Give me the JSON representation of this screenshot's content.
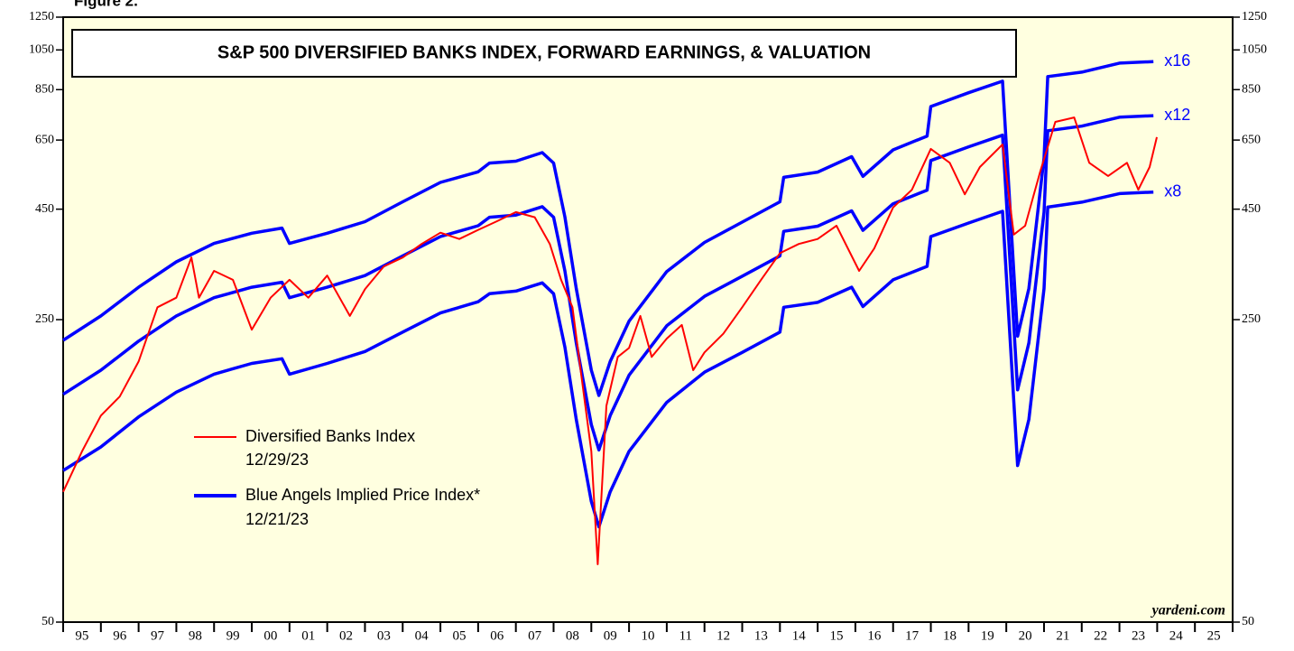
{
  "chart_data": {
    "type": "line",
    "figure_label": "Figure 2.",
    "title": "S&P 500 DIVERSIFIED BANKS INDEX, FORWARD EARNINGS, & VALUATION",
    "source": "yardeni.com",
    "yscale": "log",
    "ylim": [
      50,
      1250
    ],
    "yticks": [
      50,
      250,
      450,
      650,
      850,
      1050,
      1250
    ],
    "xlim": [
      1995,
      2026
    ],
    "xticks": [
      1995,
      1996,
      1997,
      1998,
      1999,
      2000,
      2001,
      2002,
      2003,
      2004,
      2005,
      2006,
      2007,
      2008,
      2009,
      2010,
      2011,
      2012,
      2013,
      2014,
      2015,
      2016,
      2017,
      2018,
      2019,
      2020,
      2021,
      2022,
      2023,
      2024,
      2025,
      2026
    ],
    "xtick_labels": [
      {
        "value": 1995.5,
        "label": "95"
      },
      {
        "value": 1996.5,
        "label": "96"
      },
      {
        "value": 1997.5,
        "label": "97"
      },
      {
        "value": 1998.5,
        "label": "98"
      },
      {
        "value": 1999.5,
        "label": "99"
      },
      {
        "value": 2000.5,
        "label": "00"
      },
      {
        "value": 2001.5,
        "label": "01"
      },
      {
        "value": 2002.5,
        "label": "02"
      },
      {
        "value": 2003.5,
        "label": "03"
      },
      {
        "value": 2004.5,
        "label": "04"
      },
      {
        "value": 2005.5,
        "label": "05"
      },
      {
        "value": 2006.5,
        "label": "06"
      },
      {
        "value": 2007.5,
        "label": "07"
      },
      {
        "value": 2008.5,
        "label": "08"
      },
      {
        "value": 2009.5,
        "label": "09"
      },
      {
        "value": 2010.5,
        "label": "10"
      },
      {
        "value": 2011.5,
        "label": "11"
      },
      {
        "value": 2012.5,
        "label": "12"
      },
      {
        "value": 2013.5,
        "label": "13"
      },
      {
        "value": 2014.5,
        "label": "14"
      },
      {
        "value": 2015.5,
        "label": "15"
      },
      {
        "value": 2016.5,
        "label": "16"
      },
      {
        "value": 2017.5,
        "label": "17"
      },
      {
        "value": 2018.5,
        "label": "18"
      },
      {
        "value": 2019.5,
        "label": "19"
      },
      {
        "value": 2020.5,
        "label": "20"
      },
      {
        "value": 2021.5,
        "label": "21"
      },
      {
        "value": 2022.5,
        "label": "22"
      },
      {
        "value": 2023.5,
        "label": "23"
      },
      {
        "value": 2024.5,
        "label": "24"
      },
      {
        "value": 2025.5,
        "label": "25"
      }
    ],
    "series": [
      {
        "name": "Diversified Banks Index",
        "date": "12/29/23",
        "color": "#ff0000",
        "x": [
          1995.0,
          1995.5,
          1996.0,
          1996.5,
          1997.0,
          1997.5,
          1998.0,
          1998.4,
          1998.6,
          1999.0,
          1999.5,
          2000.0,
          2000.5,
          2001.0,
          2001.5,
          2002.0,
          2002.6,
          2003.0,
          2003.5,
          2004.0,
          2004.5,
          2005.0,
          2005.5,
          2006.0,
          2006.5,
          2007.0,
          2007.5,
          2007.9,
          2008.2,
          2008.5,
          2008.75,
          2009.0,
          2009.17,
          2009.4,
          2009.7,
          2010.0,
          2010.3,
          2010.6,
          2011.0,
          2011.4,
          2011.7,
          2012.0,
          2012.5,
          2013.0,
          2013.5,
          2014.0,
          2014.5,
          2015.0,
          2015.5,
          2016.1,
          2016.5,
          2017.0,
          2017.5,
          2018.0,
          2018.5,
          2018.9,
          2019.3,
          2019.9,
          2020.2,
          2020.5,
          2020.9,
          2021.3,
          2021.8,
          2022.2,
          2022.7,
          2023.2,
          2023.5,
          2023.8,
          2023.99
        ],
        "values": [
          100,
          124,
          150,
          166,
          200,
          267,
          281,
          348,
          281,
          324,
          309,
          237,
          281,
          309,
          281,
          316,
          255,
          294,
          332,
          348,
          374,
          397,
          384,
          403,
          422,
          443,
          431,
          374,
          309,
          267,
          182,
          124,
          68,
          158,
          205,
          215,
          255,
          205,
          226,
          243,
          191,
          210,
          232,
          267,
          309,
          356,
          374,
          384,
          412,
          324,
          365,
          454,
          499,
          620,
          576,
          487,
          563,
          635,
          393,
          412,
          550,
          716,
          733,
          576,
          537,
          576,
          499,
          563,
          660
        ]
      },
      {
        "name": "Blue Angels Implied Price Index*",
        "date": "12/21/23",
        "color": "#0000ff",
        "x": [
          1995.0,
          1996.0,
          1997.0,
          1998.0,
          1999.0,
          2000.0,
          2000.8,
          2001.0,
          2002.0,
          2003.0,
          2004.0,
          2005.0,
          2006.0,
          2006.3,
          2007.0,
          2007.7,
          2008.0,
          2008.3,
          2008.6,
          2009.0,
          2009.2,
          2009.5,
          2010.0,
          2011.0,
          2012.0,
          2013.0,
          2014.0,
          2014.1,
          2015.0,
          2015.9,
          2016.2,
          2017.0,
          2017.9,
          2018.0,
          2019.0,
          2019.9,
          2020.3,
          2020.6,
          2021.0,
          2021.1,
          2022.0,
          2023.0,
          2023.9
        ],
        "lines": [
          {
            "label": "x16",
            "values": [
              224,
              255,
              297,
              340,
              375,
              396,
              407,
              375,
              396,
              421,
              468,
              519,
              549,
              575,
              581,
              608,
              575,
              432,
              295,
              191,
              167,
              200,
              248,
              323,
              377,
              420,
              468,
              533,
              548,
              595,
              536,
              617,
              664,
              777,
              836,
              889,
              229,
              295,
              591,
              911,
              933,
              979,
              987
            ]
          },
          {
            "label": "x12",
            "values": [
              168,
              191,
              223,
              255,
              281,
              297,
              305,
              281,
              297,
              316,
              351,
              389,
              412,
              431,
              436,
              456,
              431,
              324,
              221,
              143,
              125,
              150,
              186,
              242,
              283,
              315,
              351,
              400,
              411,
              446,
              402,
              463,
              498,
              583,
              627,
              667,
              172,
              221,
              443,
              683,
              700,
              734,
              740
            ]
          },
          {
            "label": "x8",
            "values": [
              112,
              127,
              149,
              170,
              187,
              198,
              203,
              187,
              198,
              211,
              234,
              259,
              275,
              287,
              291,
              304,
              287,
              216,
              147,
              95,
              83,
              100,
              124,
              161,
              189,
              210,
              234,
              267,
              274,
              297,
              268,
              309,
              332,
              389,
              418,
              445,
              115,
              147,
              295,
              455,
              467,
              489,
              493
            ]
          }
        ]
      }
    ]
  }
}
